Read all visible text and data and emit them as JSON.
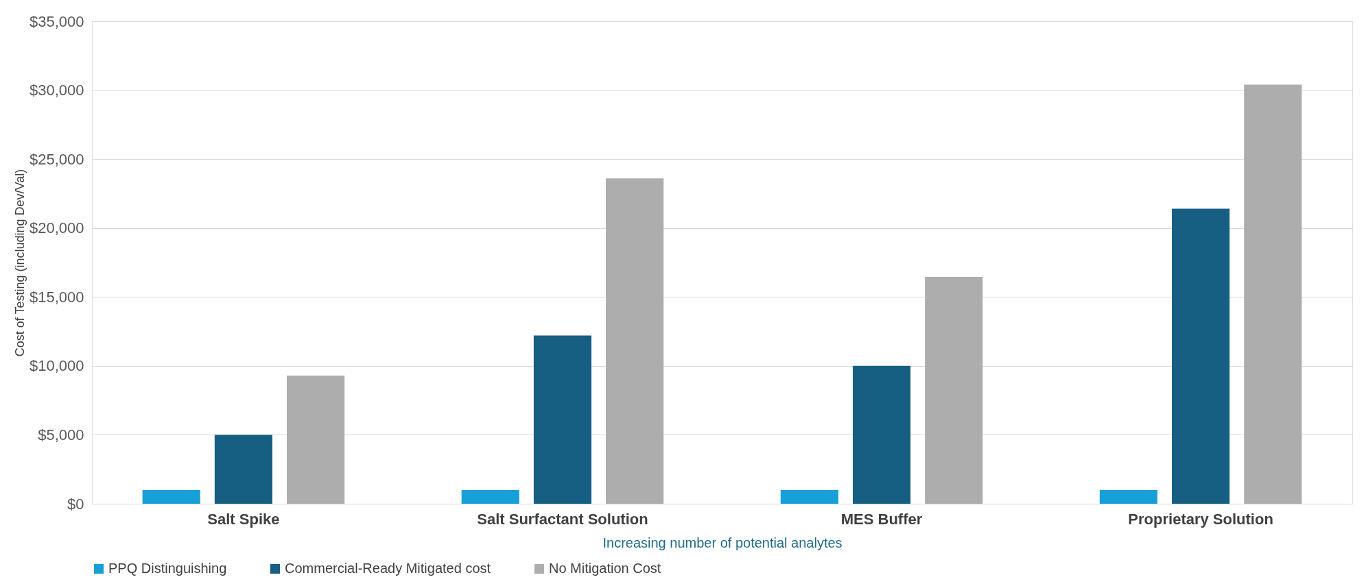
{
  "chart_data": {
    "type": "bar",
    "categories": [
      "Salt Spike",
      "Salt Surfactant Solution",
      "MES Buffer",
      "Proprietary Solution"
    ],
    "series": [
      {
        "name": "PPQ Distinguishing",
        "color": "#17a0d8",
        "values": [
          1000,
          1000,
          1000,
          1000
        ]
      },
      {
        "name": "Commercial-Ready Mitigated cost",
        "color": "#165f82",
        "values": [
          5000,
          12200,
          10000,
          21400
        ]
      },
      {
        "name": "No Mitigation Cost",
        "color": "#adadad",
        "values": [
          9300,
          23600,
          16450,
          30400
        ]
      }
    ],
    "xlabel": "Increasing number of potential analytes",
    "ylabel": "Cost of Testing  (including Dev/Val)",
    "ylim": [
      0,
      35000
    ],
    "yticks": [
      {
        "value": 0,
        "label": "$0"
      },
      {
        "value": 5000,
        "label": "$5,000"
      },
      {
        "value": 10000,
        "label": "$10,000"
      },
      {
        "value": 15000,
        "label": "$15,000"
      },
      {
        "value": 20000,
        "label": "$20,000"
      },
      {
        "value": 25000,
        "label": "$25,000"
      },
      {
        "value": 30000,
        "label": "$30,000"
      },
      {
        "value": 35000,
        "label": "$35,000"
      }
    ],
    "grid": "y",
    "legend": "bottom"
  }
}
